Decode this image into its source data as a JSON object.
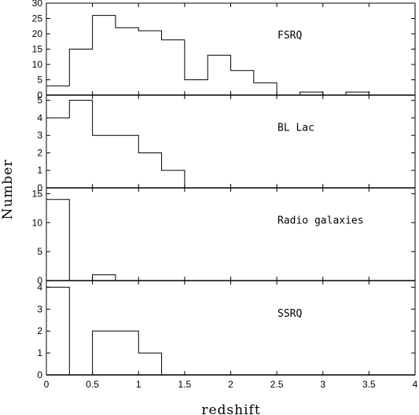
{
  "chart_data": {
    "type": "histogram",
    "xlabel": "redshift",
    "ylabel": "Number",
    "xlim": [
      0,
      4
    ],
    "bin_width": 0.25,
    "bin_edges": [
      0,
      0.25,
      0.5,
      0.75,
      1.0,
      1.25,
      1.5,
      1.75,
      2.0,
      2.25,
      2.5,
      2.75,
      3.0,
      3.25,
      3.5
    ],
    "x_ticks": [
      "0",
      "0.5",
      "1",
      "1.5",
      "2",
      "2.5",
      "3",
      "3.5",
      "4"
    ],
    "x_tick_values": [
      0,
      0.5,
      1,
      1.5,
      2,
      2.5,
      3,
      3.5,
      4
    ],
    "panels": [
      {
        "label": "FSRQ",
        "ylim": [
          0,
          30
        ],
        "y_ticks": [
          "0",
          "5",
          "10",
          "15",
          "20",
          "25",
          "30"
        ],
        "y_tick_values": [
          0,
          5,
          10,
          15,
          20,
          25,
          30
        ],
        "counts": [
          3,
          15,
          26,
          22,
          21,
          18,
          5,
          13,
          8,
          4,
          0,
          1,
          0,
          1
        ]
      },
      {
        "label": "BL Lac",
        "ylim": [
          0,
          5.3
        ],
        "y_ticks": [
          "0",
          "1",
          "2",
          "3",
          "4",
          "5"
        ],
        "y_tick_values": [
          0,
          1,
          2,
          3,
          4,
          5
        ],
        "counts": [
          4,
          5,
          3,
          3,
          2,
          1,
          0,
          0,
          0,
          0,
          0,
          0,
          0,
          0
        ]
      },
      {
        "label": "Radio galaxies",
        "ylim": [
          0,
          16
        ],
        "y_ticks": [
          "0",
          "5",
          "10",
          "15"
        ],
        "y_tick_values": [
          0,
          5,
          10,
          15
        ],
        "counts": [
          14,
          0,
          1,
          0,
          0,
          0,
          0,
          0,
          0,
          0,
          0,
          0,
          0,
          0
        ]
      },
      {
        "label": "SSRQ",
        "ylim": [
          0,
          4.3
        ],
        "y_ticks": [
          "0",
          "1",
          "2",
          "3",
          "4"
        ],
        "y_tick_values": [
          0,
          1,
          2,
          3,
          4
        ],
        "counts": [
          4,
          0,
          2,
          2,
          1,
          0,
          0,
          0,
          0,
          0,
          0,
          0,
          0,
          0
        ]
      }
    ]
  }
}
